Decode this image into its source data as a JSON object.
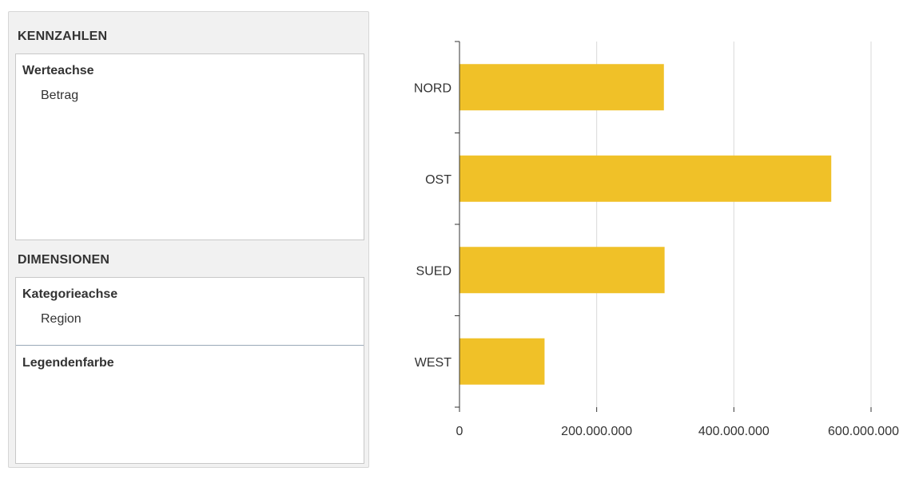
{
  "panel": {
    "measures": {
      "title": "KENNZAHLEN",
      "slots": [
        {
          "title": "Werteachse",
          "items": [
            "Betrag"
          ]
        }
      ]
    },
    "dimensions": {
      "title": "DIMENSIONEN",
      "slots": [
        {
          "title": "Kategorieachse",
          "items": [
            "Region"
          ]
        },
        {
          "title": "Legendenfarbe",
          "items": []
        }
      ]
    }
  },
  "colors": {
    "bar": "#f0c128",
    "grid": "#d9d9d9",
    "axis": "#333333"
  },
  "chart_data": {
    "type": "bar",
    "orientation": "horizontal",
    "categories": [
      "NORD",
      "OST",
      "SUED",
      "WEST"
    ],
    "values": [
      298000000,
      542000000,
      299000000,
      124000000
    ],
    "xlim": [
      0,
      600000000
    ],
    "xticks": [
      0,
      200000000,
      400000000,
      600000000
    ],
    "xtick_labels": [
      "0",
      "200.000.000",
      "400.000.000",
      "600.000.000"
    ],
    "grid": true,
    "legend": "none"
  }
}
